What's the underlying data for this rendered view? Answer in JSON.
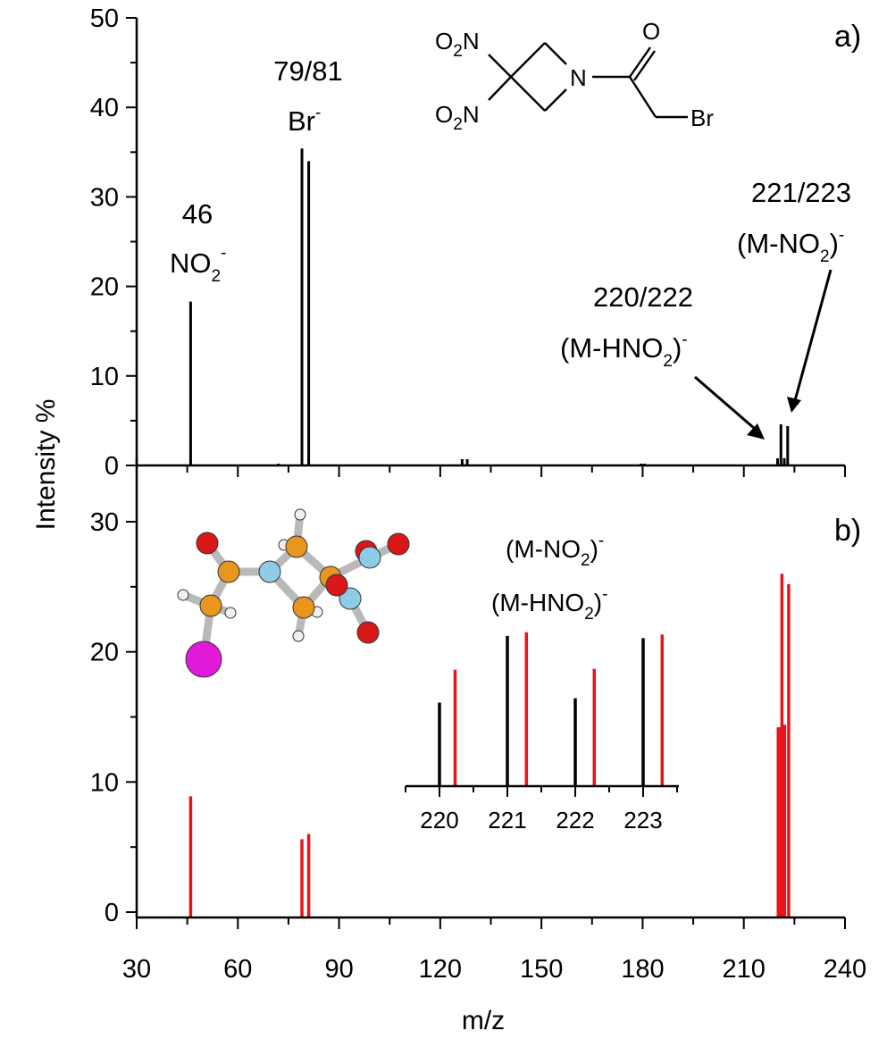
{
  "chart_data": [
    {
      "panel": "a)",
      "type": "bar",
      "xlabel": "m/z",
      "ylabel": "Intensity %",
      "xlim": [
        30,
        240
      ],
      "ylim": [
        0,
        50
      ],
      "x_ticks": [
        30,
        60,
        90,
        120,
        150,
        180,
        210,
        240
      ],
      "y_ticks": [
        0,
        10,
        20,
        30,
        40,
        50
      ],
      "series": [
        {
          "color": "#000000",
          "points": [
            {
              "x": 46,
              "y": 18.3
            },
            {
              "x": 72,
              "y": 0.2
            },
            {
              "x": 79,
              "y": 35.4
            },
            {
              "x": 81,
              "y": 34.0
            },
            {
              "x": 126.5,
              "y": 0.7
            },
            {
              "x": 128,
              "y": 0.7
            },
            {
              "x": 179.5,
              "y": 0.2
            },
            {
              "x": 180.5,
              "y": 0.2
            },
            {
              "x": 220,
              "y": 0.8
            },
            {
              "x": 221,
              "y": 4.6
            },
            {
              "x": 222,
              "y": 0.8
            },
            {
              "x": 223,
              "y": 4.4
            }
          ]
        }
      ],
      "annotations": [
        {
          "line1": "46",
          "line2": "NO",
          "sub": "2",
          "sup": "-"
        },
        {
          "line1": "79/81",
          "line2": "Br",
          "sup": "-"
        },
        {
          "line1": "220/222",
          "line2_pre": "(M-HNO",
          "sub": "2",
          "line2_post": ")",
          "sup": "-"
        },
        {
          "line1": "221/223",
          "line2_pre": "(M-NO",
          "sub": "2",
          "line2_post": ")",
          "sup": "-"
        }
      ],
      "structure_labels": {
        "o2n": "O",
        "two": "2",
        "n": "N",
        "o": "O",
        "br": "Br"
      }
    },
    {
      "panel": "b)",
      "type": "bar",
      "xlabel": "m/z",
      "ylabel": "Intensity %",
      "xlim": [
        30,
        240
      ],
      "ylim": [
        0,
        30
      ],
      "x_ticks": [
        30,
        60,
        90,
        120,
        150,
        180,
        210,
        240
      ],
      "y_ticks": [
        0,
        10,
        20,
        30
      ],
      "series": [
        {
          "color": "#e8141c",
          "points": [
            {
              "x": 46,
              "y": 8.9
            },
            {
              "x": 79,
              "y": 5.6
            },
            {
              "x": 81,
              "y": 6.0
            },
            {
              "x": 220.2,
              "y": 14.2
            },
            {
              "x": 220.6,
              "y": 14.2
            },
            {
              "x": 221.3,
              "y": 26.0
            },
            {
              "x": 222.1,
              "y": 14.4
            },
            {
              "x": 223.3,
              "y": 25.2
            }
          ]
        }
      ],
      "inset": {
        "type": "bar",
        "x_ticks": [
          220,
          221,
          222,
          223
        ],
        "series": [
          {
            "color": "#000000",
            "points": [
              {
                "x": 220,
                "y": 11.4
              },
              {
                "x": 221,
                "y": 20.5
              },
              {
                "x": 222,
                "y": 12.0
              },
              {
                "x": 223,
                "y": 20.2
              }
            ]
          },
          {
            "color": "#e8141c",
            "points": [
              {
                "x": 220.23,
                "y": 15.9
              },
              {
                "x": 221.28,
                "y": 21.0
              },
              {
                "x": 222.28,
                "y": 16.0
              },
              {
                "x": 223.28,
                "y": 20.7
              }
            ]
          }
        ],
        "labels": [
          {
            "pre": "(M-NO",
            "sub": "2",
            "post": ")",
            "sup": "-"
          },
          {
            "pre": "(M-HNO",
            "sub": "2",
            "post": ")",
            "sup": "-"
          }
        ]
      }
    }
  ]
}
